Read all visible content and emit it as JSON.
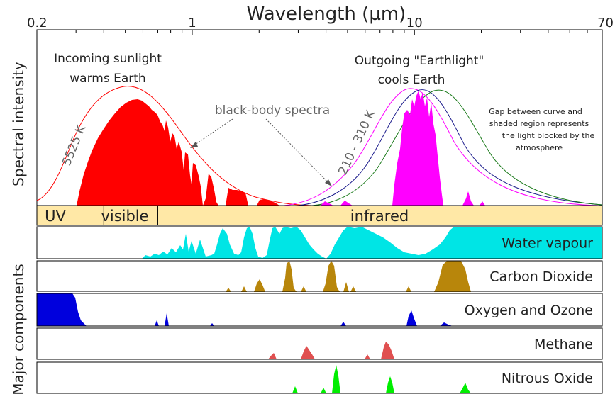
{
  "title": "Wavelength (µm)",
  "y_label_top": "Spectral intensity",
  "y_label_bottom": "Major components",
  "x_axis": {
    "scale": "log",
    "range": [
      0.2,
      70
    ],
    "labeled_ticks": [
      {
        "value": 0.2,
        "label": "0.2"
      },
      {
        "value": 1,
        "label": "1"
      },
      {
        "value": 10,
        "label": "10"
      },
      {
        "value": 70,
        "label": "70"
      }
    ],
    "minor_ticks": [
      0.3,
      0.4,
      0.5,
      0.6,
      0.7,
      0.8,
      0.9,
      2,
      3,
      4,
      5,
      6,
      7,
      8,
      9,
      20,
      30,
      40,
      50,
      60
    ]
  },
  "annotations": {
    "incoming_line1": "Incoming sunlight",
    "incoming_line2": "warms Earth",
    "outgoing_line1": "Outgoing \"Earthlight\"",
    "outgoing_line2": "cools Earth",
    "blackbody": "black-body spectra",
    "sun_temp": "5525 K",
    "earth_temp": "210 - 310 K",
    "gap_line1": "Gap between curve and",
    "gap_line2": "shaded region represents",
    "gap_line3": "the light blocked by the",
    "gap_line4": "atmosphere"
  },
  "bands": [
    {
      "label": "UV",
      "from": 0.2,
      "to": 0.4
    },
    {
      "label": "visible",
      "from": 0.4,
      "to": 0.7
    },
    {
      "label": "infrared",
      "from": 0.7,
      "to": 70
    }
  ],
  "components": [
    {
      "name": "Water vapour",
      "color": "#00e5e5"
    },
    {
      "name": "Carbon Dioxide",
      "color": "#b8860b"
    },
    {
      "name": "Oxygen and Ozone",
      "color": "#0000dd"
    },
    {
      "name": "Methane",
      "color": "#e05050"
    },
    {
      "name": "Nitrous Oxide",
      "color": "#00ee00"
    }
  ],
  "colors": {
    "sun_fill": "#ff0000",
    "earth_fill": "#ff00ff",
    "band_fill": "#ffe8a6"
  }
}
